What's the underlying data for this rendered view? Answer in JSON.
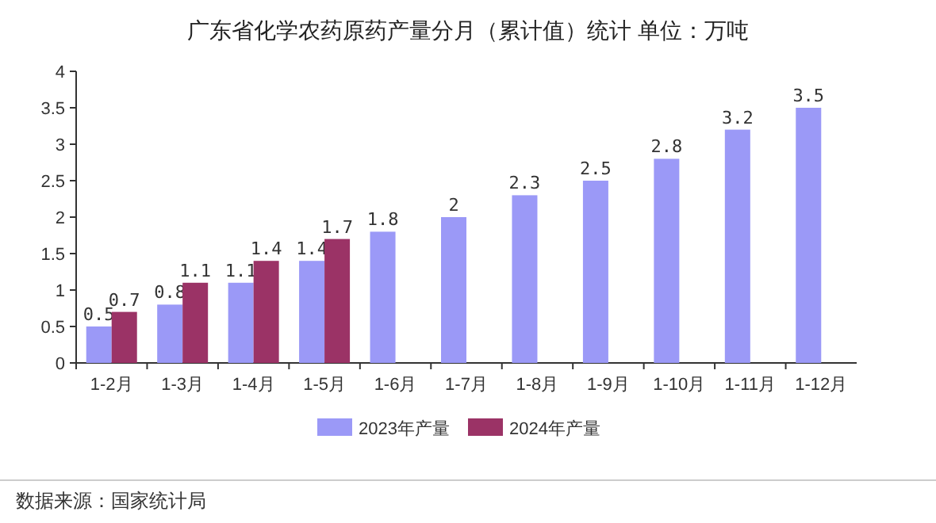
{
  "chart_data": {
    "type": "bar",
    "title": "广东省化学农药原药产量分月（累计值）统计 单位：万吨",
    "categories": [
      "1-2月",
      "1-3月",
      "1-4月",
      "1-5月",
      "1-6月",
      "1-7月",
      "1-8月",
      "1-9月",
      "1-10月",
      "1-11月",
      "1-12月"
    ],
    "series": [
      {
        "name": "2023年产量",
        "color": "#9b99f7",
        "values": [
          0.5,
          0.8,
          1.1,
          1.4,
          1.8,
          2,
          2.3,
          2.5,
          2.8,
          3.2,
          3.5
        ]
      },
      {
        "name": "2024年产量",
        "color": "#9b3366",
        "values": [
          0.7,
          1.1,
          1.4,
          1.7,
          null,
          null,
          null,
          null,
          null,
          null,
          null
        ]
      }
    ],
    "ylim": [
      0,
      4
    ],
    "yticks": [
      0,
      0.5,
      1,
      1.5,
      2,
      2.5,
      3,
      3.5,
      4
    ],
    "data_labels": true,
    "legend": "bottom",
    "annotations": [
      "数据来源：国家统计局"
    ]
  }
}
